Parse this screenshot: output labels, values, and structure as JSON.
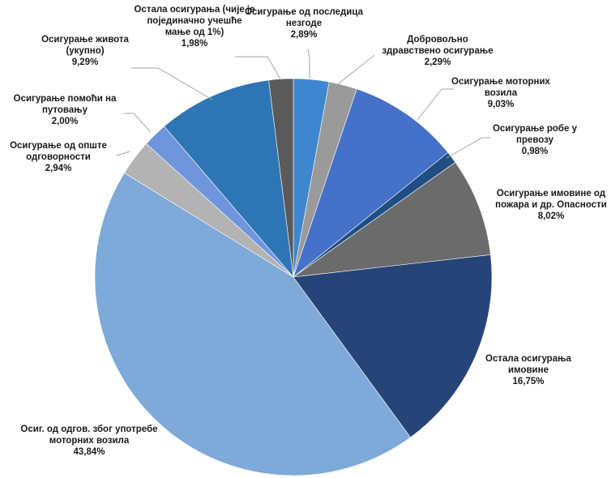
{
  "chart_data": {
    "type": "pie",
    "title": "",
    "slices": [
      {
        "label": [
          "Осигурање од последица",
          "незгоде",
          "2,89%"
        ],
        "value": 2.89,
        "color": "#3f86d0"
      },
      {
        "label": [
          "Добровољно",
          "здравствено осигурање",
          "2,29%"
        ],
        "value": 2.29,
        "color": "#9a9a9a"
      },
      {
        "label": [
          "Осигурање моторних",
          "возила",
          "9,03%"
        ],
        "value": 9.03,
        "color": "#4571c8"
      },
      {
        "label": [
          "Осигурање робе у",
          "превозу",
          "0,98%"
        ],
        "value": 0.98,
        "color": "#1f4e84"
      },
      {
        "label": [
          "Осигурање имовине од",
          "пожара и др. Опасности",
          "8,02%"
        ],
        "value": 8.02,
        "color": "#6b6b6b"
      },
      {
        "label": [
          "Остала осигурања",
          "имовине",
          "16,75%"
        ],
        "value": 16.75,
        "color": "#264478"
      },
      {
        "label": [
          "Осиг. од одгов. због употребе",
          "моторних возила",
          "43,84%"
        ],
        "value": 43.84,
        "color": "#7ea9d9"
      },
      {
        "label": [
          "Осигурање од опште",
          "одговорности",
          "2,94%"
        ],
        "value": 2.94,
        "color": "#b3b3b3"
      },
      {
        "label": [
          "Осигурање помоћи на",
          "путовању",
          "2,00%"
        ],
        "value": 2.0,
        "color": "#6f96dc"
      },
      {
        "label": [
          "Осигурање живота",
          "(укупно)",
          "9,29%"
        ],
        "value": 9.29,
        "color": "#2e75b6"
      },
      {
        "label": [
          "Остала осигурања (чије је",
          "појединачно учешће",
          "мање од 1%)",
          "1,98%"
        ],
        "value": 1.98,
        "color": "#5a5a5a"
      }
    ]
  }
}
